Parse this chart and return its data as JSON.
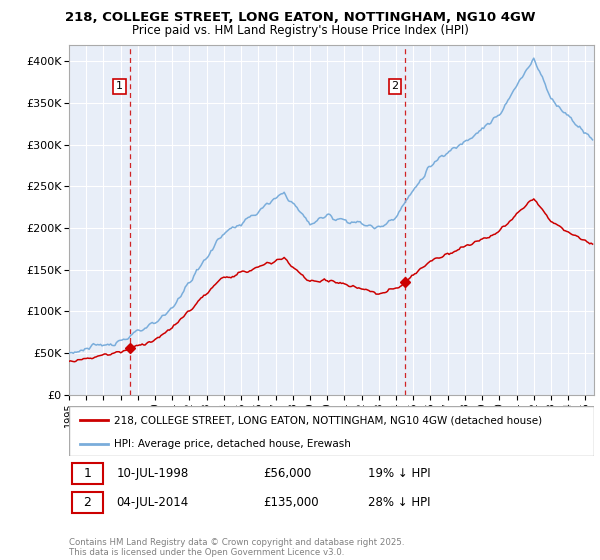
{
  "title_line1": "218, COLLEGE STREET, LONG EATON, NOTTINGHAM, NG10 4GW",
  "title_line2": "Price paid vs. HM Land Registry's House Price Index (HPI)",
  "legend_label1": "218, COLLEGE STREET, LONG EATON, NOTTINGHAM, NG10 4GW (detached house)",
  "legend_label2": "HPI: Average price, detached house, Erewash",
  "sale1_date": "10-JUL-1998",
  "sale1_price": 56000,
  "sale1_note": "19% ↓ HPI",
  "sale2_date": "04-JUL-2014",
  "sale2_price": 135000,
  "sale2_note": "28% ↓ HPI",
  "footer": "Contains HM Land Registry data © Crown copyright and database right 2025.\nThis data is licensed under the Open Government Licence v3.0.",
  "color_property": "#cc0000",
  "color_hpi": "#7aaddb",
  "color_dashed": "#cc0000",
  "bg_color": "#e8eef8",
  "ylim": [
    0,
    420000
  ],
  "yticks": [
    0,
    50000,
    100000,
    150000,
    200000,
    250000,
    300000,
    350000,
    400000
  ],
  "ytick_labels": [
    "£0",
    "£50K",
    "£100K",
    "£150K",
    "£200K",
    "£250K",
    "£300K",
    "£350K",
    "£400K"
  ]
}
